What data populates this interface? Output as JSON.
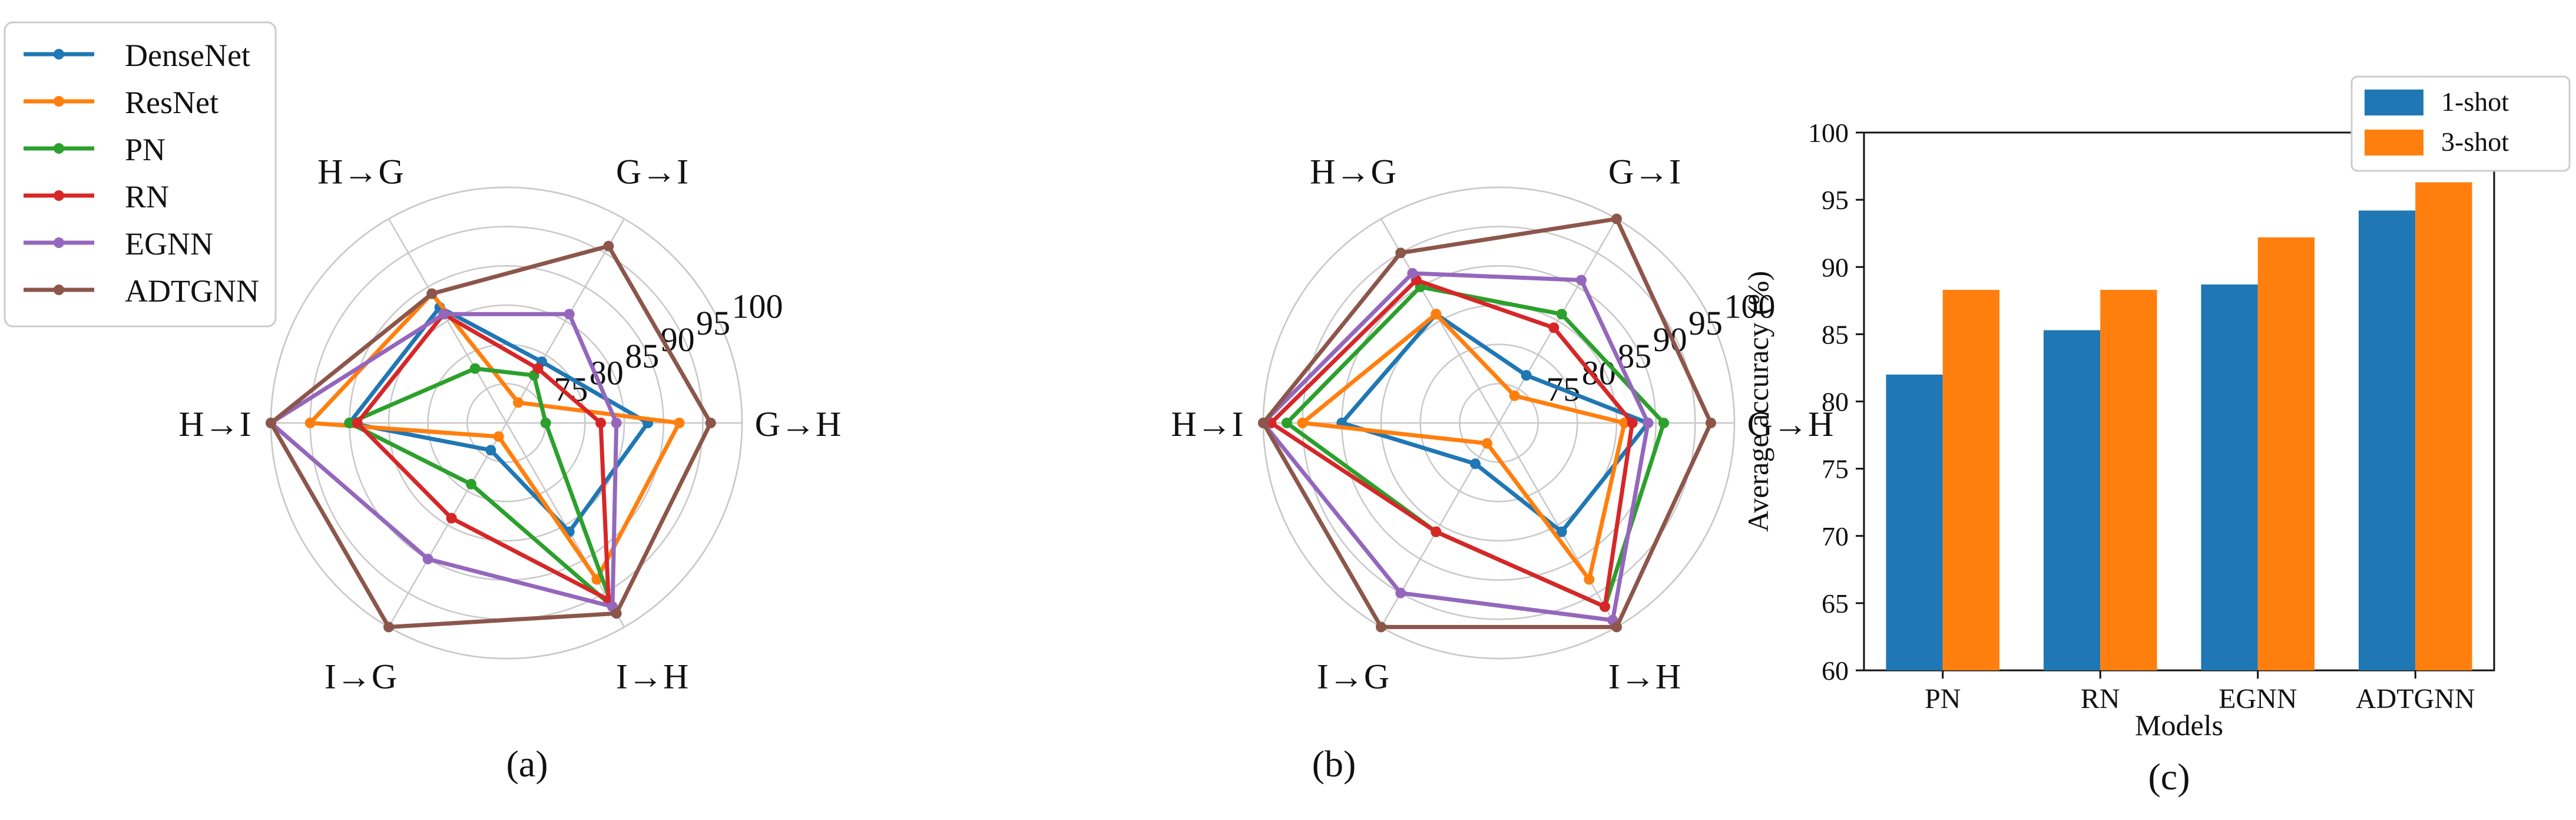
{
  "chart_data": [
    {
      "type": "radar",
      "panel_label": "(a)",
      "axes": [
        "G→H",
        "G→I",
        "H→G",
        "H→I",
        "I→G",
        "I→H"
      ],
      "radial_ticks": [
        75,
        80,
        85,
        90,
        95,
        100
      ],
      "rlim": [
        70,
        100
      ],
      "grid": true,
      "series": [
        {
          "name": "DenseNet",
          "values": [
            88,
            79,
            87,
            90,
            74,
            86
          ]
        },
        {
          "name": "ResNet",
          "values": [
            92,
            73,
            89,
            95,
            72,
            93
          ]
        },
        {
          "name": "PN",
          "values": [
            75,
            77,
            78,
            90,
            79,
            97
          ]
        },
        {
          "name": "RN",
          "values": [
            82,
            78,
            86,
            89,
            84,
            96
          ]
        },
        {
          "name": "EGNN",
          "values": [
            84,
            86,
            86,
            100,
            90,
            97
          ]
        },
        {
          "name": "ADTGNN",
          "values": [
            96,
            96,
            89,
            100,
            100,
            98
          ]
        }
      ]
    },
    {
      "type": "radar",
      "panel_label": "(b)",
      "axes": [
        "G→H",
        "G→I",
        "H→G",
        "H→I",
        "I→G",
        "I→H"
      ],
      "radial_ticks": [
        75,
        80,
        85,
        90,
        95,
        100
      ],
      "rlim": [
        70,
        100
      ],
      "grid": true,
      "series": [
        {
          "name": "DenseNet",
          "values": [
            89,
            77,
            86,
            90,
            76,
            86
          ]
        },
        {
          "name": "ResNet",
          "values": [
            86,
            74,
            86,
            95,
            73,
            93
          ]
        },
        {
          "name": "PN",
          "values": [
            91,
            86,
            90,
            97,
            86,
            97
          ]
        },
        {
          "name": "RN",
          "values": [
            87,
            84,
            91,
            99,
            86,
            97
          ]
        },
        {
          "name": "EGNN",
          "values": [
            89,
            91,
            92,
            100,
            95,
            99
          ]
        },
        {
          "name": "ADTGNN",
          "values": [
            97,
            100,
            95,
            100,
            100,
            100
          ]
        }
      ]
    },
    {
      "type": "bar",
      "panel_label": "(c)",
      "categories": [
        "PN",
        "RN",
        "EGNN",
        "ADTGNN"
      ],
      "series": [
        {
          "name": "1-shot",
          "values": [
            82.0,
            85.3,
            88.7,
            94.2
          ]
        },
        {
          "name": "3-shot",
          "values": [
            88.3,
            88.3,
            92.2,
            96.3
          ]
        }
      ],
      "xlabel": "Models",
      "ylabel": "Average accuracy (%)",
      "ylim": [
        60,
        100
      ],
      "yticks": [
        60,
        65,
        70,
        75,
        80,
        85,
        90,
        95,
        100
      ],
      "legend_position": "top-right"
    }
  ],
  "legend": [
    "DenseNet",
    "ResNet",
    "PN",
    "RN",
    "EGNN",
    "ADTGNN"
  ],
  "colors": {
    "DenseNet": "#1f77b4",
    "ResNet": "#ff7f0e",
    "PN": "#2ca02c",
    "RN": "#d62728",
    "EGNN": "#9467bd",
    "ADTGNN": "#8c564b",
    "1-shot": "#1f77b4",
    "3-shot": "#ff7f0e",
    "grid": "#c8c8c8"
  }
}
